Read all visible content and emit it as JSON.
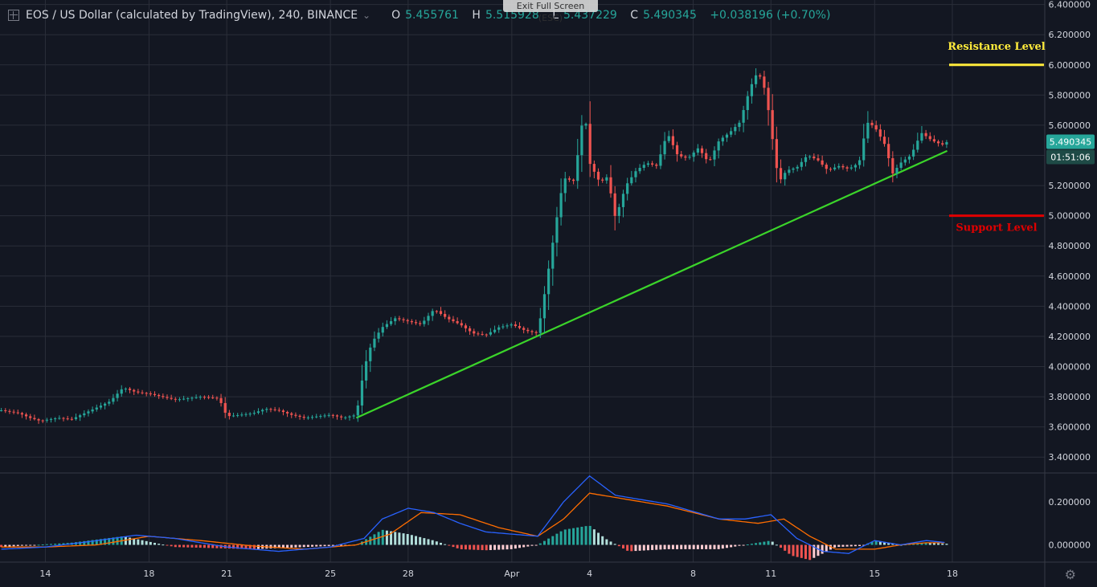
{
  "header": {
    "title": "EOS / US Dollar (calculated by TradingView), 240, BINANCE",
    "open_label": "O",
    "open": "5.455761",
    "high_label": "H",
    "high": "5.515928",
    "low_label": "L",
    "low": "5.437229",
    "close_label": "C",
    "close": "5.490345",
    "change": "+0.038196 (+0.70%)"
  },
  "exit_fullscreen": "Exit Full Screen (ESC)",
  "price_badge": "5.490345",
  "countdown_badge": "01:51:06",
  "colors": {
    "background": "#131722",
    "grid": "#2a2e39",
    "up": "#26a69a",
    "down": "#ef5350",
    "trendline": "#3bd42a",
    "resistance": "#ffeb3b",
    "support": "#e00000",
    "macd": "#2962ff",
    "signal": "#ff6d00"
  },
  "chart_data": {
    "type": "candlestick",
    "symbol": "EOS / US Dollar",
    "interval": "240",
    "exchange": "BINANCE",
    "y_ticks": [
      "6.400000",
      "6.200000",
      "6.000000",
      "5.800000",
      "5.600000",
      "5.400000",
      "5.200000",
      "5.000000",
      "4.800000",
      "4.600000",
      "4.400000",
      "4.200000",
      "4.000000",
      "3.800000",
      "3.600000",
      "3.400000"
    ],
    "ylim": [
      3.3,
      6.43
    ],
    "x_ticks": [
      "14",
      "18",
      "21",
      "25",
      "28",
      "Apr",
      "4",
      "8",
      "11",
      "15",
      "18"
    ],
    "x_tick_days": [
      0,
      4,
      7,
      11,
      14,
      18,
      21,
      25,
      28,
      32,
      35
    ],
    "x_day_range": [
      -1.75,
      35
    ],
    "price_close": [
      [
        -1.7,
        3.71
      ],
      [
        -1.0,
        3.69
      ],
      [
        -0.6,
        3.66
      ],
      [
        -0.2,
        3.64
      ],
      [
        0.5,
        3.66
      ],
      [
        1.0,
        3.65
      ],
      [
        1.5,
        3.69
      ],
      [
        2.0,
        3.73
      ],
      [
        2.5,
        3.77
      ],
      [
        3.0,
        3.86
      ],
      [
        3.5,
        3.83
      ],
      [
        4.0,
        3.82
      ],
      [
        4.5,
        3.8
      ],
      [
        5.0,
        3.78
      ],
      [
        6.0,
        3.8
      ],
      [
        6.7,
        3.79
      ],
      [
        7.0,
        3.67
      ],
      [
        7.5,
        3.68
      ],
      [
        8.0,
        3.69
      ],
      [
        8.5,
        3.72
      ],
      [
        9.0,
        3.71
      ],
      [
        9.5,
        3.68
      ],
      [
        10.0,
        3.66
      ],
      [
        10.5,
        3.67
      ],
      [
        11.0,
        3.68
      ],
      [
        11.5,
        3.66
      ],
      [
        12.0,
        3.68
      ],
      [
        12.3,
        3.99
      ],
      [
        12.6,
        4.16
      ],
      [
        13.0,
        4.26
      ],
      [
        13.5,
        4.32
      ],
      [
        14.0,
        4.3
      ],
      [
        14.5,
        4.28
      ],
      [
        15.0,
        4.38
      ],
      [
        15.5,
        4.32
      ],
      [
        16.0,
        4.28
      ],
      [
        16.5,
        4.22
      ],
      [
        17.0,
        4.21
      ],
      [
        17.5,
        4.26
      ],
      [
        18.0,
        4.28
      ],
      [
        18.5,
        4.24
      ],
      [
        19.0,
        4.22
      ],
      [
        19.3,
        4.52
      ],
      [
        19.7,
        4.95
      ],
      [
        20.0,
        5.25
      ],
      [
        20.4,
        5.23
      ],
      [
        20.8,
        5.72
      ],
      [
        21.0,
        5.35
      ],
      [
        21.4,
        5.22
      ],
      [
        21.7,
        5.26
      ],
      [
        22.0,
        4.98
      ],
      [
        22.4,
        5.2
      ],
      [
        22.8,
        5.3
      ],
      [
        23.2,
        5.35
      ],
      [
        23.6,
        5.33
      ],
      [
        24.0,
        5.55
      ],
      [
        24.4,
        5.4
      ],
      [
        24.8,
        5.38
      ],
      [
        25.2,
        5.45
      ],
      [
        25.6,
        5.35
      ],
      [
        26.0,
        5.5
      ],
      [
        26.4,
        5.55
      ],
      [
        26.8,
        5.62
      ],
      [
        27.2,
        5.85
      ],
      [
        27.5,
        5.96
      ],
      [
        27.8,
        5.82
      ],
      [
        28.0,
        5.58
      ],
      [
        28.3,
        5.22
      ],
      [
        28.6,
        5.3
      ],
      [
        29.0,
        5.32
      ],
      [
        29.4,
        5.4
      ],
      [
        29.8,
        5.37
      ],
      [
        30.2,
        5.3
      ],
      [
        30.6,
        5.33
      ],
      [
        31.0,
        5.31
      ],
      [
        31.4,
        5.35
      ],
      [
        31.7,
        5.62
      ],
      [
        32.0,
        5.59
      ],
      [
        32.4,
        5.47
      ],
      [
        32.7,
        5.28
      ],
      [
        33.0,
        5.35
      ],
      [
        33.4,
        5.4
      ],
      [
        33.8,
        5.55
      ],
      [
        34.2,
        5.5
      ],
      [
        34.6,
        5.47
      ],
      [
        34.8,
        5.49
      ]
    ],
    "trendline": [
      [
        12.0,
        3.66
      ],
      [
        34.8,
        5.43
      ]
    ],
    "trendline_label": "",
    "resistance": {
      "value": 6.0,
      "label": "Resistance Level"
    },
    "support": {
      "value": 5.0,
      "label": "Support Level"
    },
    "macd": {
      "y_ticks": [
        "0.200000",
        "0.000000"
      ],
      "ylim": [
        -0.08,
        0.33
      ],
      "macd_line": [
        [
          -1.7,
          -0.02
        ],
        [
          0,
          -0.01
        ],
        [
          2,
          0.02
        ],
        [
          3.5,
          0.045
        ],
        [
          5,
          0.03
        ],
        [
          7,
          -0.01
        ],
        [
          9,
          -0.03
        ],
        [
          11,
          -0.01
        ],
        [
          12.3,
          0.03
        ],
        [
          13,
          0.12
        ],
        [
          14,
          0.17
        ],
        [
          15,
          0.15
        ],
        [
          16,
          0.1
        ],
        [
          17,
          0.06
        ],
        [
          19,
          0.04
        ],
        [
          20,
          0.2
        ],
        [
          21,
          0.32
        ],
        [
          22,
          0.23
        ],
        [
          24,
          0.19
        ],
        [
          26,
          0.12
        ],
        [
          27,
          0.12
        ],
        [
          28,
          0.14
        ],
        [
          29,
          0.03
        ],
        [
          30,
          -0.03
        ],
        [
          31,
          -0.04
        ],
        [
          32,
          0.02
        ],
        [
          33,
          0.0
        ],
        [
          34,
          0.02
        ],
        [
          34.8,
          0.01
        ]
      ],
      "signal_line": [
        [
          -1.7,
          -0.01
        ],
        [
          0,
          -0.01
        ],
        [
          2,
          0.0
        ],
        [
          4,
          0.04
        ],
        [
          6,
          0.02
        ],
        [
          8,
          -0.005
        ],
        [
          10,
          -0.02
        ],
        [
          12,
          0.0
        ],
        [
          13.3,
          0.05
        ],
        [
          14.5,
          0.15
        ],
        [
          16,
          0.14
        ],
        [
          17.5,
          0.08
        ],
        [
          19,
          0.04
        ],
        [
          20,
          0.12
        ],
        [
          21,
          0.24
        ],
        [
          22,
          0.22
        ],
        [
          24,
          0.18
        ],
        [
          26,
          0.12
        ],
        [
          27.5,
          0.1
        ],
        [
          28.5,
          0.12
        ],
        [
          29.5,
          0.04
        ],
        [
          30.5,
          -0.02
        ],
        [
          32,
          -0.02
        ],
        [
          33,
          0.0
        ],
        [
          34,
          0.01
        ],
        [
          34.8,
          0.01
        ]
      ],
      "histogram_levels": [
        [
          -1.7,
          -0.01
        ],
        [
          1,
          0.01
        ],
        [
          3,
          0.04
        ],
        [
          5,
          -0.01
        ],
        [
          8,
          -0.02
        ],
        [
          12,
          0.0
        ],
        [
          13,
          0.07
        ],
        [
          14,
          0.05
        ],
        [
          15,
          0.02
        ],
        [
          16,
          -0.02
        ],
        [
          17,
          -0.025
        ],
        [
          18,
          -0.02
        ],
        [
          19,
          0.0
        ],
        [
          20,
          0.07
        ],
        [
          21,
          0.09
        ],
        [
          21.6,
          0.03
        ],
        [
          22.5,
          -0.03
        ],
        [
          24,
          -0.02
        ],
        [
          26,
          -0.02
        ],
        [
          27.5,
          0.01
        ],
        [
          28,
          0.02
        ],
        [
          28.8,
          -0.05
        ],
        [
          29.5,
          -0.07
        ],
        [
          30.5,
          -0.01
        ],
        [
          31.5,
          -0.005
        ],
        [
          32,
          0.02
        ],
        [
          33,
          0.0
        ],
        [
          34,
          0.01
        ],
        [
          34.8,
          0.005
        ]
      ]
    }
  }
}
